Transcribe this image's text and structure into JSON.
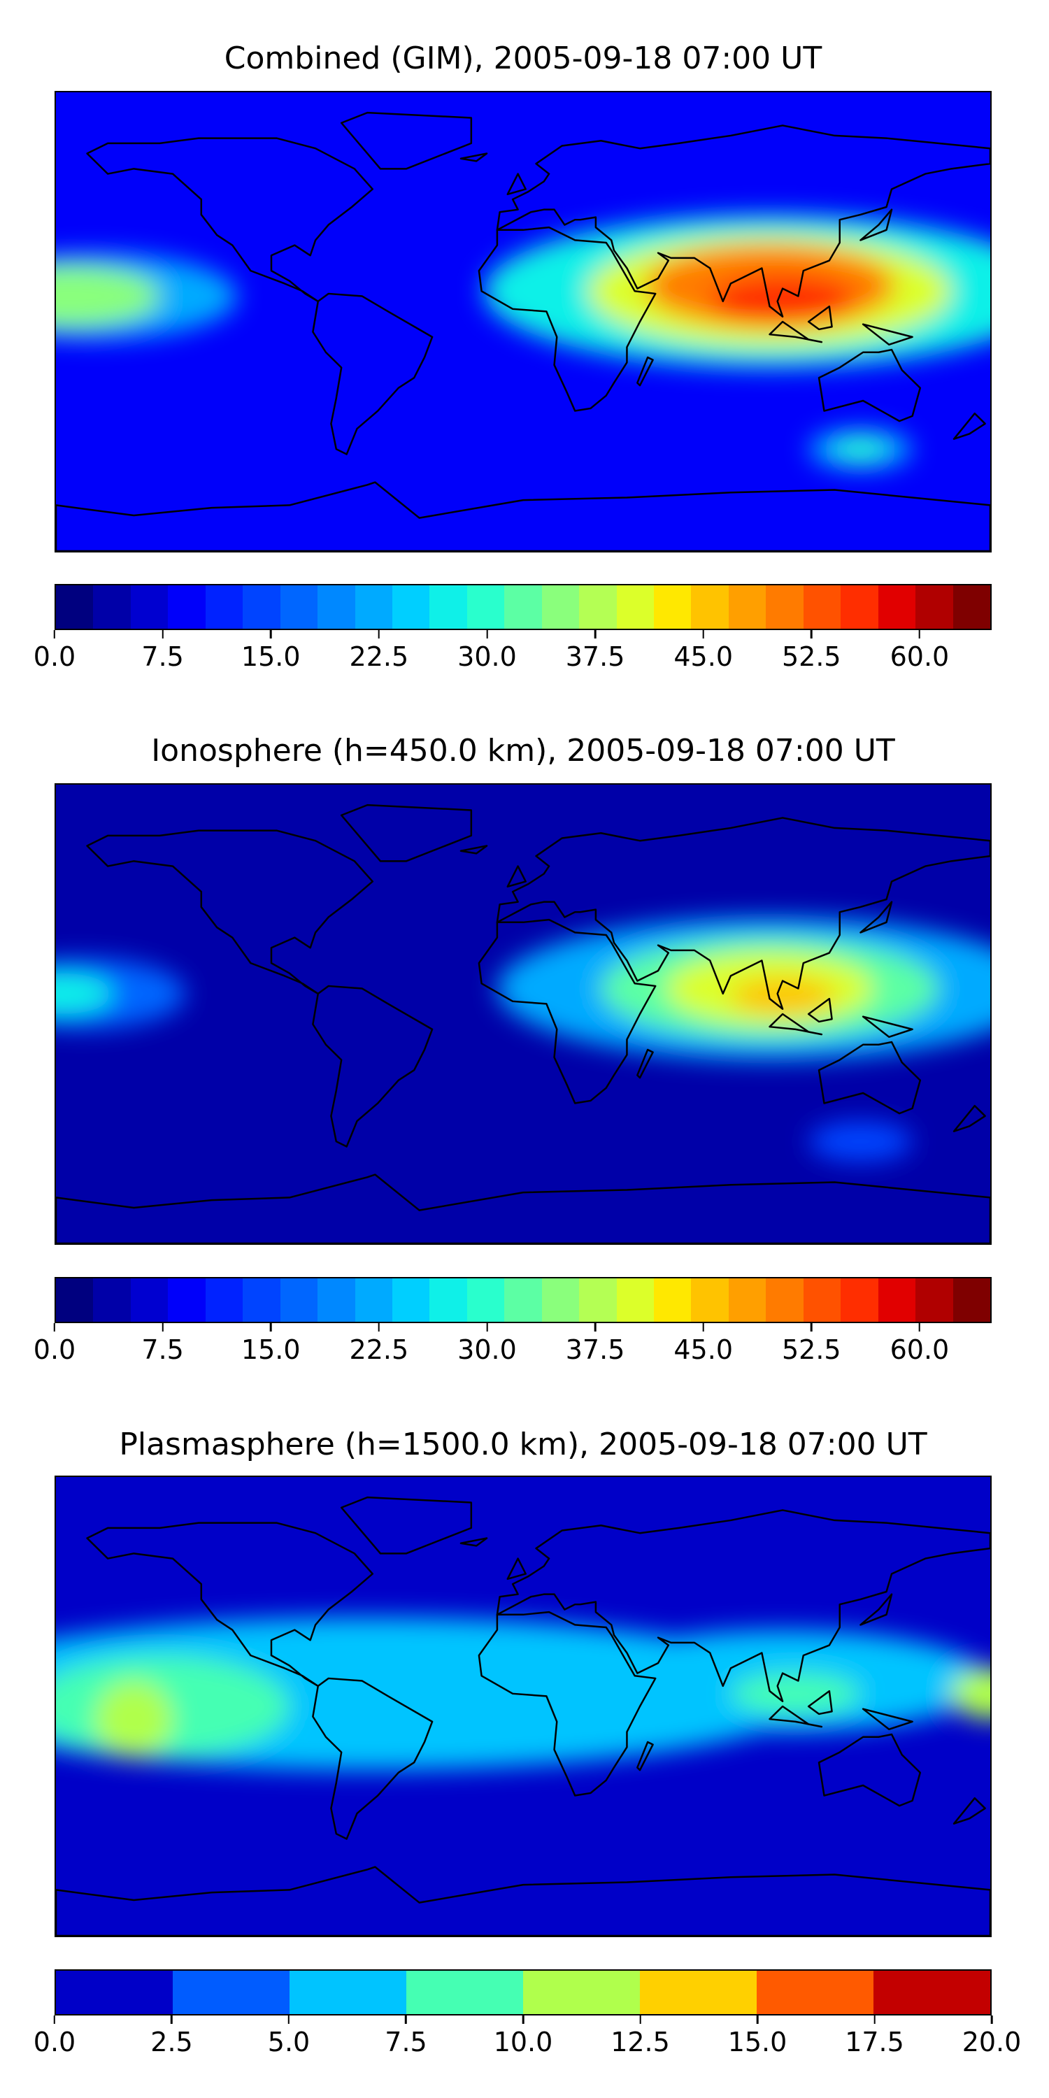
{
  "panels": [
    {
      "id": "combined",
      "title": "Combined (GIM), 2005-09-18 07:00 UT",
      "colorbar": {
        "colors": [
          "#00007f",
          "#0000a8",
          "#0000d0",
          "#0000fa",
          "#0022ff",
          "#0044ff",
          "#0066ff",
          "#0088ff",
          "#00aaff",
          "#00cfff",
          "#0ff0e8",
          "#29ffcd",
          "#5cffa4",
          "#8aff7c",
          "#b4ff54",
          "#dcff2a",
          "#ffe800",
          "#ffc300",
          "#ff9f00",
          "#ff7b00",
          "#ff5200",
          "#ff2e00",
          "#e10000",
          "#b00000",
          "#7f0000"
        ],
        "ticks": [
          "0.0",
          "7.5",
          "15.0",
          "22.5",
          "30.0",
          "37.5",
          "45.0",
          "52.5",
          "60.0"
        ],
        "tick_values": [
          0,
          7.5,
          15,
          22.5,
          30,
          37.5,
          45,
          52.5,
          60
        ],
        "vmin": 0,
        "vmax": 65
      },
      "blobs": [
        {
          "lon": 95,
          "lat": 12,
          "rx": 110,
          "ry": 30,
          "value": 28
        },
        {
          "lon": 95,
          "lat": 12,
          "rx": 70,
          "ry": 22,
          "value": 40
        },
        {
          "lon": 95,
          "lat": 14,
          "rx": 48,
          "ry": 16,
          "value": 50
        },
        {
          "lon": 100,
          "lat": 8,
          "rx": 28,
          "ry": 10,
          "value": 56
        },
        {
          "lon": -165,
          "lat": 10,
          "rx": 55,
          "ry": 17,
          "value": 22
        },
        {
          "lon": -175,
          "lat": 10,
          "rx": 35,
          "ry": 12,
          "value": 34
        },
        {
          "lon": 130,
          "lat": -50,
          "rx": 20,
          "ry": 8,
          "value": 22
        },
        {
          "lon": 130,
          "lat": -50,
          "rx": 10,
          "ry": 4,
          "value": 30
        }
      ],
      "background_value": 8
    },
    {
      "id": "ionosphere",
      "title": "Ionosphere  (h=450.0 km), 2005-09-18 07:00 UT",
      "colorbar": {
        "colors": [
          "#00007f",
          "#0000a8",
          "#0000d0",
          "#0000fa",
          "#0022ff",
          "#0044ff",
          "#0066ff",
          "#0088ff",
          "#00aaff",
          "#00cfff",
          "#0ff0e8",
          "#29ffcd",
          "#5cffa4",
          "#8aff7c",
          "#b4ff54",
          "#dcff2a",
          "#ffe800",
          "#ffc300",
          "#ff9f00",
          "#ff7b00",
          "#ff5200",
          "#ff2e00",
          "#e10000",
          "#b00000",
          "#7f0000"
        ],
        "ticks": [
          "0.0",
          "7.5",
          "15.0",
          "22.5",
          "30.0",
          "37.5",
          "45.0",
          "52.5",
          "60.0"
        ],
        "tick_values": [
          0,
          7.5,
          15,
          22.5,
          30,
          37.5,
          45,
          52.5,
          60
        ],
        "vmin": 0,
        "vmax": 65
      },
      "blobs": [
        {
          "lon": 95,
          "lat": 10,
          "rx": 105,
          "ry": 28,
          "value": 22
        },
        {
          "lon": 95,
          "lat": 10,
          "rx": 65,
          "ry": 20,
          "value": 33
        },
        {
          "lon": 95,
          "lat": 10,
          "rx": 40,
          "ry": 14,
          "value": 40
        },
        {
          "lon": 100,
          "lat": 7,
          "rx": 20,
          "ry": 7,
          "value": 45
        },
        {
          "lon": -170,
          "lat": 8,
          "rx": 40,
          "ry": 14,
          "value": 16
        },
        {
          "lon": -178,
          "lat": 8,
          "rx": 20,
          "ry": 8,
          "value": 26
        },
        {
          "lon": 130,
          "lat": -50,
          "rx": 20,
          "ry": 8,
          "value": 14
        }
      ],
      "background_value": 3
    },
    {
      "id": "plasmasphere",
      "title": "Plasmasphere (h=1500.0 km), 2005-09-18 07:00 UT",
      "colorbar": {
        "colors": [
          "#0000c8",
          "#005cff",
          "#00c4ff",
          "#45ffb3",
          "#b0ff4c",
          "#ffd000",
          "#ff5a00",
          "#c30000"
        ],
        "ticks": [
          "0.0",
          "2.5",
          "5.0",
          "7.5",
          "10.0",
          "12.5",
          "15.0",
          "17.5",
          "20.0"
        ],
        "tick_values": [
          0,
          2.5,
          5,
          7.5,
          10,
          12.5,
          15,
          17.5,
          20
        ],
        "vmin": 0,
        "vmax": 20
      },
      "blobs": [
        {
          "lon": -60,
          "lat": 5,
          "rx": 175,
          "ry": 30,
          "value": 6
        },
        {
          "lon": 100,
          "lat": 10,
          "rx": 80,
          "ry": 20,
          "value": 6
        },
        {
          "lon": -140,
          "lat": 0,
          "rx": 50,
          "ry": 20,
          "value": 8.5
        },
        {
          "lon": -150,
          "lat": -5,
          "rx": 15,
          "ry": 15,
          "value": 11
        },
        {
          "lon": 105,
          "lat": 5,
          "rx": 25,
          "ry": 8,
          "value": 8.5
        },
        {
          "lon": 180,
          "lat": 5,
          "rx": 15,
          "ry": 10,
          "value": 11
        }
      ],
      "background_value": 1
    }
  ]
}
